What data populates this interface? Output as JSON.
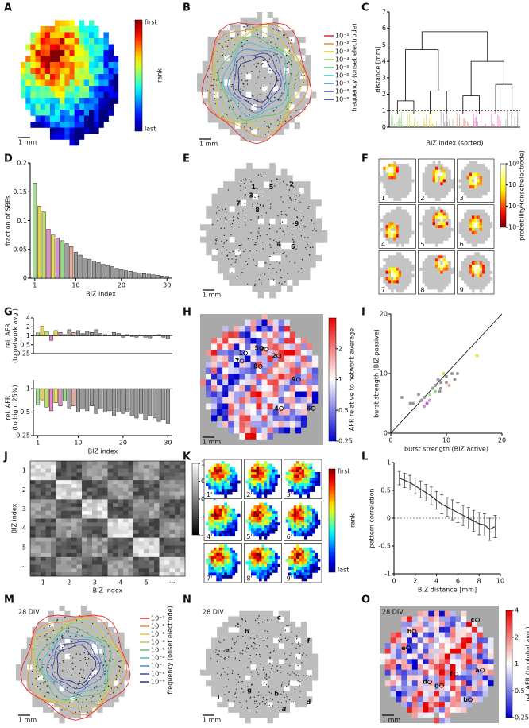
{
  "chart_data": [
    {
      "panel": "A",
      "type": "map",
      "colormap": "rank",
      "colorbar": {
        "title": "rank",
        "top": "first",
        "bottom": "last"
      },
      "scale_label": "1 mm"
    },
    {
      "panel": "B",
      "type": "map",
      "colormap": "gray",
      "legend_title": "frequency (onset electrode)",
      "series": [
        {
          "name": "10⁻¹",
          "color": "#e8282b"
        },
        {
          "name": "10⁻²",
          "color": "#f08a2c"
        },
        {
          "name": "10⁻³",
          "color": "#e0cc30"
        },
        {
          "name": "10⁻⁴",
          "color": "#a8d060"
        },
        {
          "name": "10⁻⁵",
          "color": "#5cc46a"
        },
        {
          "name": "10⁻⁶",
          "color": "#40c0c8"
        },
        {
          "name": "10⁻⁷",
          "color": "#4a8ad8"
        },
        {
          "name": "10⁻⁸",
          "color": "#3a4ac0"
        },
        {
          "name": "10⁻⁹",
          "color": "#2a2a8a"
        }
      ],
      "scale_label": "1 mm"
    },
    {
      "panel": "C",
      "type": "dendrogram",
      "xlabel": "BIZ index (sorted)",
      "ylabel": "distance [mm]",
      "ylim": [
        0,
        7
      ],
      "yticks": [
        0,
        1,
        2,
        3,
        4,
        5,
        6,
        7
      ],
      "threshold": 1,
      "cluster_colors": [
        "#98d888",
        "#c4dc6a",
        "#e0d24a",
        "#a0a0a0",
        "#e8a898",
        "#d890c8",
        "#e48cc8",
        "#a0a0a0"
      ],
      "merges": [
        {
          "nodes": [
            0,
            1
          ],
          "height": 1.6
        },
        {
          "nodes": [
            2,
            3
          ],
          "height": 2.2
        },
        {
          "nodes": [
            8,
            9
          ],
          "height": 4.7
        },
        {
          "nodes": [
            4,
            5
          ],
          "height": 1.9
        },
        {
          "nodes": [
            6,
            7
          ],
          "height": 2.6
        },
        {
          "nodes": [
            11,
            12
          ],
          "height": 4.0
        },
        {
          "nodes": [
            10,
            13
          ],
          "height": 5.8
        }
      ]
    },
    {
      "panel": "D",
      "type": "bar",
      "xlabel": "BIZ index",
      "ylabel": "fraction of SBEs",
      "xlim": [
        0,
        31
      ],
      "xticks": [
        1,
        10,
        20,
        30
      ],
      "ylim": [
        0,
        0.2
      ],
      "yticks": [
        0,
        0.05,
        0.1,
        0.15,
        0.2
      ],
      "x": [
        1,
        2,
        3,
        4,
        5,
        6,
        7,
        8,
        9,
        10,
        11,
        12,
        13,
        14,
        15,
        16,
        17,
        18,
        19,
        20,
        21,
        22,
        23,
        24,
        25,
        26,
        27,
        28,
        29,
        30
      ],
      "values": [
        0.165,
        0.125,
        0.115,
        0.085,
        0.075,
        0.07,
        0.065,
        0.06,
        0.055,
        0.045,
        0.04,
        0.035,
        0.033,
        0.03,
        0.027,
        0.024,
        0.022,
        0.02,
        0.017,
        0.015,
        0.013,
        0.012,
        0.01,
        0.009,
        0.008,
        0.007,
        0.006,
        0.005,
        0.004,
        0.003
      ],
      "colors": [
        "#a8dc98",
        "#e0d24a",
        "#c4dc6a",
        "#e48cc8",
        "#e8dc5a",
        "#d890c8",
        "#98d888",
        "#a0a0a0",
        "#e8a898",
        "#9a9a9a",
        "#9a9a9a",
        "#9a9a9a",
        "#9a9a9a",
        "#9a9a9a",
        "#9a9a9a",
        "#9a9a9a",
        "#9a9a9a",
        "#9a9a9a",
        "#9a9a9a",
        "#9a9a9a",
        "#9a9a9a",
        "#9a9a9a",
        "#9a9a9a",
        "#9a9a9a",
        "#9a9a9a",
        "#9a9a9a",
        "#9a9a9a",
        "#9a9a9a",
        "#9a9a9a",
        "#9a9a9a"
      ]
    },
    {
      "panel": "E",
      "type": "map",
      "colormap": "gray",
      "labels": [
        "1",
        "2",
        "3",
        "4",
        "5",
        "6",
        "7",
        "8",
        "9"
      ],
      "scale_label": "1 mm"
    },
    {
      "panel": "F",
      "type": "small_multiples",
      "colormap": "hot",
      "labels": [
        "1",
        "2",
        "3",
        "4",
        "5",
        "6",
        "7",
        "8",
        "9"
      ],
      "colorbar": {
        "title": "probability (onset electrode)",
        "log": true,
        "lim": [
          0.001,
          1
        ],
        "ticks": [
          {
            "value": 1,
            "label": "10⁰"
          },
          {
            "value": 0.1,
            "label": "10⁻¹"
          },
          {
            "value": 0.01,
            "label": "10⁻²"
          },
          {
            "value": 0.001,
            "label": "10⁻³"
          }
        ]
      }
    },
    {
      "panel": "G",
      "type": "bar",
      "log_y": true,
      "baseline": 1,
      "ylabel": [
        "rel. AFR",
        "(to network avg.)"
      ],
      "xlim": [
        0,
        31
      ],
      "ylim": [
        0.25,
        4
      ],
      "yticks": [
        0.25,
        0.5,
        1,
        2,
        4
      ],
      "x": [
        1,
        2,
        3,
        4,
        5,
        6,
        7,
        8,
        9,
        10,
        11,
        12,
        13,
        14,
        15,
        16,
        17,
        18,
        19,
        20,
        21,
        22,
        23,
        24,
        25,
        26,
        27,
        28,
        29,
        30
      ],
      "values": [
        1.25,
        2.1,
        1.4,
        0.7,
        1.5,
        1.3,
        1.1,
        1.6,
        1.3,
        1.5,
        1.2,
        1.4,
        1.3,
        1.6,
        1.2,
        1.1,
        1.05,
        1.3,
        1.2,
        0.9,
        1.1,
        0.95,
        0.9,
        1.05,
        0.9,
        0.85,
        1.05,
        1.1,
        0.9,
        0.8
      ],
      "colors": [
        "#a8dc98",
        "#e0d24a",
        "#c4dc6a",
        "#e48cc8",
        "#e8dc5a",
        "#d890c8",
        "#98d888",
        "#a0a0a0",
        "#e8a898",
        "#9a9a9a",
        "#9a9a9a",
        "#9a9a9a",
        "#9a9a9a",
        "#9a9a9a",
        "#9a9a9a",
        "#9a9a9a",
        "#9a9a9a",
        "#9a9a9a",
        "#9a9a9a",
        "#9a9a9a",
        "#9a9a9a",
        "#9a9a9a",
        "#9a9a9a",
        "#9a9a9a",
        "#9a9a9a",
        "#9a9a9a",
        "#9a9a9a",
        "#9a9a9a",
        "#9a9a9a",
        "#9a9a9a"
      ]
    },
    {
      "type": "bar",
      "log_y": true,
      "baseline": 1,
      "ylabel": [
        "rel. AFR",
        "(to high. 25%)"
      ],
      "xlabel": "BIZ index",
      "xlim": [
        0,
        31
      ],
      "xticks": [
        1,
        10,
        20,
        30
      ],
      "ylim": [
        0.25,
        1.3
      ],
      "yticks": [
        0.25,
        0.5,
        1
      ],
      "x": [
        1,
        2,
        3,
        4,
        5,
        6,
        7,
        8,
        9,
        10,
        11,
        12,
        13,
        14,
        15,
        16,
        17,
        18,
        19,
        20,
        21,
        22,
        23,
        24,
        25,
        26,
        27,
        28,
        29,
        30
      ],
      "values": [
        0.62,
        0.72,
        0.58,
        0.52,
        0.66,
        0.6,
        0.7,
        0.55,
        0.6,
        0.5,
        0.55,
        0.52,
        0.6,
        0.48,
        0.55,
        0.5,
        0.52,
        0.45,
        0.5,
        0.48,
        0.5,
        0.45,
        0.42,
        0.48,
        0.4,
        0.45,
        0.42,
        0.38,
        0.4,
        0.36
      ],
      "colors": [
        "#a8dc98",
        "#e0d24a",
        "#c4dc6a",
        "#e48cc8",
        "#e8dc5a",
        "#d890c8",
        "#98d888",
        "#a0a0a0",
        "#e8a898",
        "#9a9a9a",
        "#9a9a9a",
        "#9a9a9a",
        "#9a9a9a",
        "#9a9a9a",
        "#9a9a9a",
        "#9a9a9a",
        "#9a9a9a",
        "#9a9a9a",
        "#9a9a9a",
        "#9a9a9a",
        "#9a9a9a",
        "#9a9a9a",
        "#9a9a9a",
        "#9a9a9a",
        "#9a9a9a",
        "#9a9a9a",
        "#9a9a9a",
        "#9a9a9a",
        "#9a9a9a",
        "#9a9a9a"
      ]
    },
    {
      "panel": "H",
      "type": "map",
      "colormap": "bwr",
      "labels": [
        "1",
        "2",
        "3",
        "4",
        "5",
        "6",
        "7",
        "8",
        "9"
      ],
      "colorbar": {
        "title": "AFR relative to network average",
        "log": true,
        "lim": [
          0.25,
          4
        ],
        "ticks": [
          0.25,
          0.5,
          1,
          2
        ]
      },
      "scale_label": "1 mm"
    },
    {
      "panel": "I",
      "type": "scatter",
      "xlabel": "burst strength (BIZ active)",
      "ylabel": "burst strength (BIZ passive)",
      "xlim": [
        0,
        20
      ],
      "ylim": [
        0,
        20
      ],
      "xticks": [
        0,
        10,
        20
      ],
      "yticks": [
        0,
        10,
        20
      ],
      "diagonal": true,
      "x": [
        2,
        3.5,
        5,
        5.5,
        6,
        6.5,
        7,
        7.5,
        8,
        8.5,
        8,
        9,
        9.5,
        10,
        10.5,
        11,
        11.5,
        12,
        7,
        6,
        9,
        10,
        15.5,
        4,
        8.8
      ],
      "values": [
        6,
        5,
        6.5,
        5.5,
        4.5,
        5,
        6.5,
        7.5,
        7,
        9,
        8,
        8.5,
        10,
        9.5,
        8,
        10,
        9,
        10,
        5.5,
        6,
        7.5,
        8.5,
        13,
        5,
        7
      ],
      "colors": [
        "#999999",
        "#999999",
        "#999999",
        "#999999",
        "#d98cd0",
        "#9a6ad0",
        "#a8dc98",
        "#999999",
        "#98d888",
        "#999999",
        "#999999",
        "#999999",
        "#c4dc6a",
        "#999999",
        "#e8a898",
        "#999999",
        "#999999",
        "#999999",
        "#d890c8",
        "#999999",
        "#999999",
        "#999999",
        "#e8e040",
        "#999999",
        "#999999"
      ]
    },
    {
      "panel": "J",
      "type": "matrix",
      "xlabel": "BIZ index",
      "ylabel": "BIZ index",
      "categories": [
        "1",
        "2",
        "3",
        "4",
        "5",
        "···"
      ],
      "colorbar": {
        "title": "pattern correlation",
        "lim": [
          -1,
          1
        ],
        "ticks": [
          -1,
          -0.5,
          0,
          0.5,
          1
        ]
      }
    },
    {
      "panel": "K",
      "type": "small_multiples",
      "colormap": "rank",
      "labels": [
        "1'",
        "2'",
        "3'",
        "4'",
        "5'",
        "6'",
        "7'",
        "8'",
        "9'"
      ],
      "colorbar": {
        "title": "rank",
        "top": "first",
        "bottom": "last"
      }
    },
    {
      "panel": "L",
      "type": "line",
      "xlabel": "BIZ distance [mm]",
      "ylabel": "pattern correlation",
      "xlim": [
        0,
        10
      ],
      "ylim": [
        -1,
        1
      ],
      "xticks": [
        0,
        2,
        4,
        6,
        8,
        10
      ],
      "yticks": [
        -1,
        -0.5,
        0,
        0.5,
        1
      ],
      "zero_line": true,
      "color": "#333333",
      "x": [
        0.5,
        1,
        1.5,
        2,
        2.5,
        3,
        3.5,
        4,
        4.5,
        5,
        5.5,
        6,
        6.5,
        7,
        7.5,
        8,
        8.5,
        9,
        9.5
      ],
      "values": [
        0.72,
        0.68,
        0.64,
        0.58,
        0.52,
        0.46,
        0.4,
        0.32,
        0.25,
        0.2,
        0.15,
        0.1,
        0.05,
        0.0,
        -0.05,
        -0.1,
        -0.12,
        -0.2,
        -0.15
      ],
      "errors": [
        0.12,
        0.13,
        0.13,
        0.14,
        0.15,
        0.15,
        0.16,
        0.16,
        0.17,
        0.17,
        0.18,
        0.18,
        0.18,
        0.19,
        0.19,
        0.2,
        0.2,
        0.2,
        0.2
      ]
    },
    {
      "panel": "M",
      "type": "map",
      "colormap": "gray",
      "annotation": "28 DIV",
      "legend_title": "frequency (onset electrode)",
      "series": [
        {
          "name": "10⁻¹",
          "color": "#e8282b"
        },
        {
          "name": "10⁻²",
          "color": "#f08a2c"
        },
        {
          "name": "10⁻³",
          "color": "#e0cc30"
        },
        {
          "name": "10⁻⁴",
          "color": "#a8d060"
        },
        {
          "name": "10⁻⁵",
          "color": "#5cc46a"
        },
        {
          "name": "10⁻⁶",
          "color": "#40c0c8"
        },
        {
          "name": "10⁻⁷",
          "color": "#4a8ad8"
        },
        {
          "name": "10⁻⁸",
          "color": "#3a4ac0"
        },
        {
          "name": "10⁻⁹",
          "color": "#2a2a8a"
        }
      ],
      "scale_label": "1 mm"
    },
    {
      "panel": "N",
      "type": "map",
      "colormap": "gray",
      "annotation": "28 DIV",
      "labels": [
        "a",
        "b",
        "c",
        "d",
        "e",
        "f",
        "g",
        "h",
        "i"
      ],
      "scale_label": "1 mm"
    },
    {
      "panel": "O",
      "type": "map",
      "colormap": "bwr",
      "annotation": "28 DIV",
      "labels": [
        "a",
        "b",
        "c",
        "d",
        "e",
        "f",
        "g",
        "h"
      ],
      "colorbar": {
        "title": "rel. AFR (to global avg.)",
        "log": true,
        "lim": [
          0.25,
          4
        ],
        "ticks": [
          0.25,
          0.5,
          1,
          2,
          4
        ]
      },
      "scale_label": "1 mm"
    }
  ]
}
